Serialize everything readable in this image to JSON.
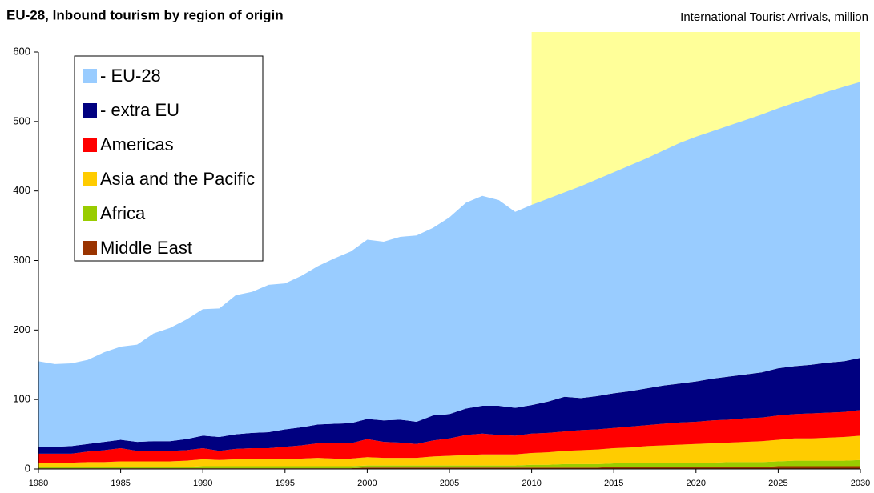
{
  "chart_data": {
    "type": "stacked-area",
    "title": "EU-28, Inbound tourism by region of origin",
    "subtitle": "International Tourist Arrivals, million",
    "x": [
      1980,
      1981,
      1982,
      1983,
      1984,
      1985,
      1986,
      1987,
      1988,
      1989,
      1990,
      1991,
      1992,
      1993,
      1994,
      1995,
      1996,
      1997,
      1998,
      1999,
      2000,
      2001,
      2002,
      2003,
      2004,
      2005,
      2006,
      2007,
      2008,
      2009,
      2010,
      2011,
      2012,
      2013,
      2014,
      2015,
      2016,
      2017,
      2018,
      2019,
      2020,
      2021,
      2022,
      2023,
      2024,
      2025,
      2026,
      2027,
      2028,
      2029,
      2030
    ],
    "series": [
      {
        "name": "- EU-28",
        "color": "#99ccff",
        "values": [
          123,
          119,
          119,
          121,
          129,
          134,
          140,
          155,
          163,
          172,
          182,
          185,
          200,
          203,
          212,
          210,
          218,
          228,
          238,
          247,
          258,
          257,
          263,
          268,
          270,
          283,
          296,
          302,
          296,
          282,
          288,
          292,
          294,
          305,
          312,
          318,
          325,
          331,
          338,
          346,
          352,
          356,
          361,
          366,
          371,
          374,
          379,
          385,
          390,
          395,
          397
        ]
      },
      {
        "name": "- extra EU",
        "color": "#000080",
        "values": [
          10,
          10,
          11,
          11,
          12,
          12,
          13,
          14,
          14,
          16,
          18,
          20,
          21,
          22,
          23,
          25,
          26,
          27,
          28,
          29,
          29,
          31,
          33,
          32,
          36,
          35,
          38,
          40,
          42,
          40,
          41,
          45,
          50,
          46,
          48,
          50,
          51,
          53,
          55,
          56,
          58,
          60,
          62,
          63,
          65,
          68,
          69,
          70,
          72,
          73,
          75
        ]
      },
      {
        "name": "Americas",
        "color": "#ff0000",
        "values": [
          13,
          13,
          13,
          15,
          17,
          19,
          15,
          15,
          15,
          15,
          16,
          13,
          15,
          16,
          16,
          17,
          19,
          21,
          22,
          22,
          26,
          23,
          22,
          20,
          23,
          25,
          29,
          30,
          28,
          27,
          28,
          28,
          28,
          29,
          29,
          29,
          30,
          30,
          31,
          32,
          32,
          33,
          33,
          34,
          34,
          35,
          35,
          36,
          36,
          36,
          37
        ]
      },
      {
        "name": "Asia and the Pacific",
        "color": "#ffcc00",
        "values": [
          6,
          6,
          6,
          7,
          7,
          8,
          8,
          8,
          8,
          9,
          10,
          9,
          10,
          10,
          10,
          11,
          11,
          12,
          11,
          11,
          12,
          11,
          11,
          11,
          13,
          14,
          15,
          16,
          16,
          16,
          17,
          18,
          19,
          20,
          21,
          22,
          23,
          24,
          25,
          26,
          27,
          28,
          28,
          29,
          30,
          31,
          32,
          32,
          33,
          34,
          35
        ]
      },
      {
        "name": "Africa",
        "color": "#99cc00",
        "values": [
          2,
          2,
          2,
          2,
          2,
          2,
          2,
          2,
          2,
          2,
          3,
          3,
          3,
          3,
          3,
          3,
          3,
          3,
          3,
          3,
          3,
          3,
          3,
          3,
          3,
          3,
          3,
          3,
          3,
          3,
          4,
          4,
          5,
          5,
          5,
          5,
          5,
          6,
          6,
          6,
          6,
          6,
          7,
          7,
          7,
          7,
          8,
          8,
          8,
          8,
          9
        ]
      },
      {
        "name": "Middle East",
        "color": "#993300",
        "values": [
          1,
          1,
          1,
          1,
          1,
          1,
          1,
          1,
          1,
          1,
          1,
          1,
          1,
          1,
          1,
          1,
          1,
          1,
          1,
          1,
          2,
          2,
          2,
          2,
          2,
          2,
          2,
          2,
          2,
          2,
          2,
          2,
          2,
          2,
          2,
          3,
          3,
          3,
          3,
          3,
          3,
          3,
          3,
          3,
          3,
          4,
          4,
          4,
          4,
          4,
          4
        ]
      }
    ],
    "xlim": [
      1980,
      2030
    ],
    "xticks": [
      1980,
      1985,
      1990,
      1995,
      2000,
      2005,
      2010,
      2015,
      2020,
      2025,
      2030
    ],
    "ylim": [
      0,
      600
    ],
    "yticks": [
      0,
      100,
      200,
      300,
      400,
      500,
      600
    ],
    "highlight_x": [
      2010,
      2030
    ],
    "highlight_color": "#ffff99",
    "legend": "upper-left"
  }
}
